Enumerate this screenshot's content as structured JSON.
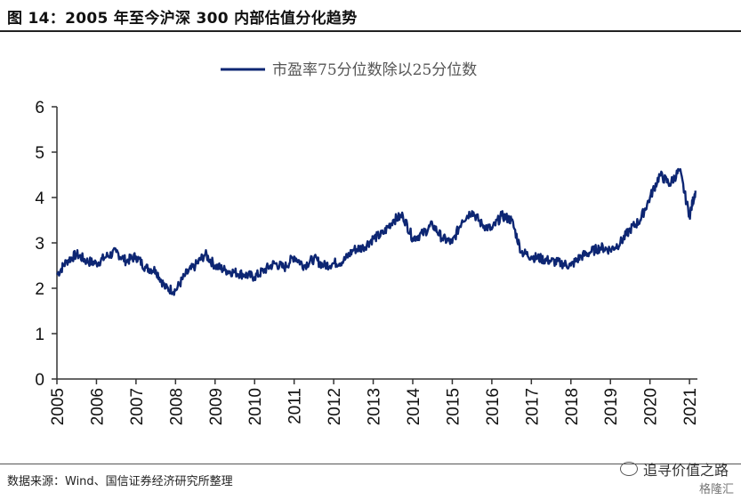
{
  "figure_title": "图 14：2005 年至今沪深 300 内部估值分化趋势",
  "source_note": "数据来源：Wind、国信证券经济研究所整理",
  "watermark": {
    "text": "追寻价值之路",
    "text2": "格隆汇",
    "icon": "wechat-icon"
  },
  "colors": {
    "line": "#0d2673",
    "axis": "#333333"
  },
  "chart_data": {
    "type": "line",
    "series": [
      {
        "name": "市盈率75分位数除以25分位数",
        "x": [
          2005.0,
          2005.25,
          2005.5,
          2005.75,
          2006.0,
          2006.25,
          2006.5,
          2006.75,
          2007.0,
          2007.25,
          2007.5,
          2007.75,
          2008.0,
          2008.25,
          2008.5,
          2008.75,
          2009.0,
          2009.25,
          2009.5,
          2009.75,
          2010.0,
          2010.25,
          2010.5,
          2010.75,
          2011.0,
          2011.25,
          2011.5,
          2011.75,
          2012.0,
          2012.25,
          2012.5,
          2012.75,
          2013.0,
          2013.25,
          2013.5,
          2013.75,
          2014.0,
          2014.25,
          2014.5,
          2014.75,
          2015.0,
          2015.25,
          2015.5,
          2015.75,
          2016.0,
          2016.25,
          2016.5,
          2016.75,
          2017.0,
          2017.25,
          2017.5,
          2017.75,
          2018.0,
          2018.25,
          2018.5,
          2018.75,
          2019.0,
          2019.25,
          2019.5,
          2019.75,
          2020.0,
          2020.25,
          2020.5,
          2020.75,
          2021.0,
          2021.15
        ],
        "values": [
          2.3,
          2.6,
          2.75,
          2.6,
          2.55,
          2.7,
          2.8,
          2.6,
          2.7,
          2.45,
          2.4,
          2.0,
          1.95,
          2.3,
          2.5,
          2.75,
          2.5,
          2.4,
          2.35,
          2.3,
          2.25,
          2.4,
          2.55,
          2.45,
          2.7,
          2.5,
          2.65,
          2.5,
          2.55,
          2.6,
          2.85,
          2.9,
          3.1,
          3.2,
          3.5,
          3.6,
          3.1,
          3.2,
          3.4,
          3.1,
          3.0,
          3.5,
          3.7,
          3.4,
          3.3,
          3.6,
          3.5,
          2.8,
          2.7,
          2.65,
          2.6,
          2.55,
          2.5,
          2.7,
          2.8,
          2.9,
          2.85,
          3.0,
          3.3,
          3.5,
          4.0,
          4.5,
          4.3,
          4.6,
          3.6,
          4.15
        ]
      }
    ],
    "xlim": [
      2005,
      2021.2
    ],
    "ylim": [
      0,
      6
    ],
    "yticks": [
      0,
      1,
      2,
      3,
      4,
      5,
      6
    ],
    "xticks": [
      "2005",
      "2006",
      "2007",
      "2008",
      "2009",
      "2010",
      "2011",
      "2012",
      "2013",
      "2014",
      "2015",
      "2016",
      "2017",
      "2018",
      "2019",
      "2020",
      "2021"
    ],
    "legend_position": "top-center",
    "grid": false,
    "title": "",
    "xlabel": "",
    "ylabel": ""
  }
}
